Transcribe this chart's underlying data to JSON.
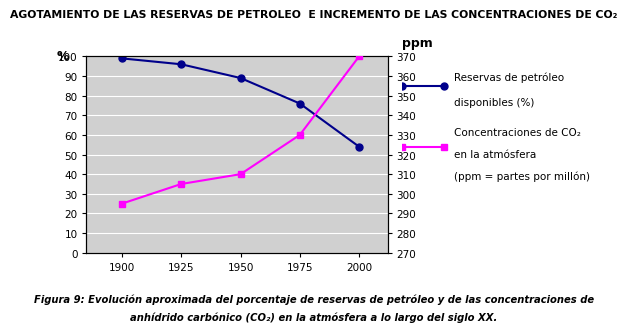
{
  "title": "AGOTAMIENTO DE LAS RESERVAS DE PETROLEO  E INCREMENTO DE LAS CONCENTRACIONES DE CO₂",
  "years": [
    1900,
    1925,
    1950,
    1975,
    2000
  ],
  "oil_reserves": [
    99,
    96,
    89,
    76,
    54
  ],
  "co2_ppm": [
    295,
    305,
    310,
    330,
    370
  ],
  "ylabel_left": "%",
  "ylabel_right": "ppm",
  "ylim_left": [
    0,
    100
  ],
  "ylim_right": [
    270,
    370
  ],
  "yticks_left": [
    0,
    10,
    20,
    30,
    40,
    50,
    60,
    70,
    80,
    90,
    100
  ],
  "yticks_right": [
    270,
    280,
    290,
    300,
    310,
    320,
    330,
    340,
    350,
    360,
    370
  ],
  "oil_color": "#00008B",
  "co2_color": "#FF00FF",
  "oil_label_line1": "Reservas de petróleo",
  "oil_label_line2": "disponibles (%)",
  "co2_label_line1": "Concentraciones de CO₂",
  "co2_label_line2": "en la atmósfera",
  "co2_label_line3": "(ppm = partes por millón)",
  "caption_line1": "Figura 9: Evolución aproximada del porcentaje de reservas de petróleo y de las concentraciones de",
  "caption_line2": "anhídrido carbónico (CO₂) en la atmósfera a lo largo del siglo XX.",
  "bg_color": "#D0D0D0",
  "title_fontsize": 7.8,
  "tick_fontsize": 7.5,
  "legend_fontsize": 7.5,
  "caption_fontsize": 7.2
}
